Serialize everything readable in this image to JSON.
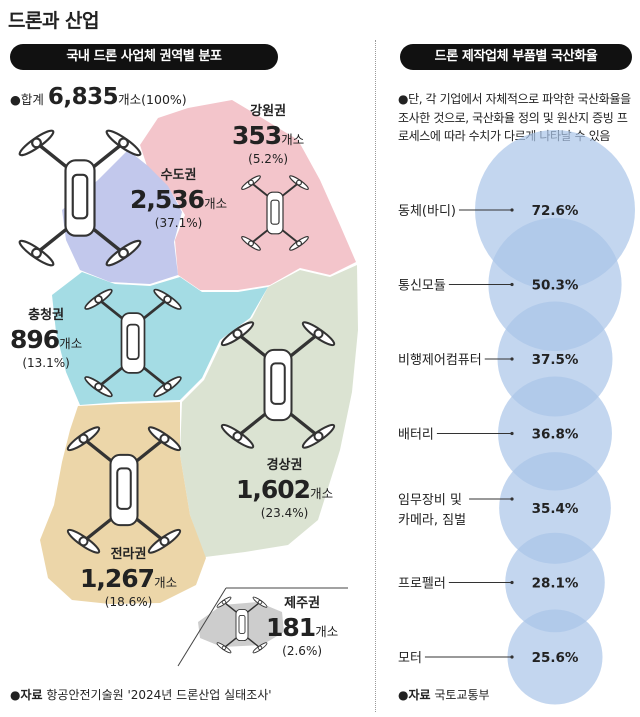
{
  "title": "드론과 산업",
  "left_panel": {
    "header": "국내 드론 사업체 권역별 분포",
    "total_prefix": "●합계 ",
    "total_value": "6,835",
    "total_suffix": "개소(100%)",
    "source_label": "●자료",
    "source_text": " 항공안전기술원 '2024년 드론산업 실태조사'"
  },
  "right_panel": {
    "header": "드론 제작업체 부품별 국산화율",
    "note": "●단, 각 기업에서 자체적으로 파악한 국산화율을 조사한 것으로, 국산화율 정의 및 원산지 증빙 프로세스에 따라 수치가 다르게 나타날 수 있음",
    "source_label": "●자료",
    "source_text": " 국토교통부"
  },
  "chart_data": [
    {
      "type": "map",
      "title": "국내 드론 사업체 권역별 분포",
      "unit": "개소",
      "total": 6835,
      "regions": [
        {
          "name": "강원권",
          "value": "353",
          "unit": "개소",
          "pct": "(5.2%)",
          "color": "#f3c5cb"
        },
        {
          "name": "수도권",
          "value": "2,536",
          "unit": "개소",
          "pct": "(37.1%)",
          "color": "#c2c8ec"
        },
        {
          "name": "충청권",
          "value": "896",
          "unit": "개소",
          "pct": "(13.1%)",
          "color": "#a4dce4"
        },
        {
          "name": "경상권",
          "value": "1,602",
          "unit": "개소",
          "pct": "(23.4%)",
          "color": "#dbe3d2"
        },
        {
          "name": "전라권",
          "value": "1,267",
          "unit": "개소",
          "pct": "(18.6%)",
          "color": "#ecd6a9"
        },
        {
          "name": "제주권",
          "value": "181",
          "unit": "개소",
          "pct": "(2.6%)",
          "color": "#cdcdcd"
        }
      ]
    },
    {
      "type": "bubble",
      "title": "드론 제작업체 부품별 국산화율",
      "unit": "%",
      "color": "#a9c4e8",
      "items": [
        {
          "label": "동체(바디)",
          "value": 72.6,
          "text": "72.6%"
        },
        {
          "label": "통신모듈",
          "value": 50.3,
          "text": "50.3%"
        },
        {
          "label": "비행제어컴퓨터",
          "value": 37.5,
          "text": "37.5%"
        },
        {
          "label": "배터리",
          "value": 36.8,
          "text": "36.8%"
        },
        {
          "label": "임무장비 및\n카메라, 짐벌",
          "value": 35.4,
          "text": "35.4%"
        },
        {
          "label": "프로펠러",
          "value": 28.1,
          "text": "28.1%"
        },
        {
          "label": "모터",
          "value": 25.6,
          "text": "25.6%"
        }
      ]
    }
  ]
}
